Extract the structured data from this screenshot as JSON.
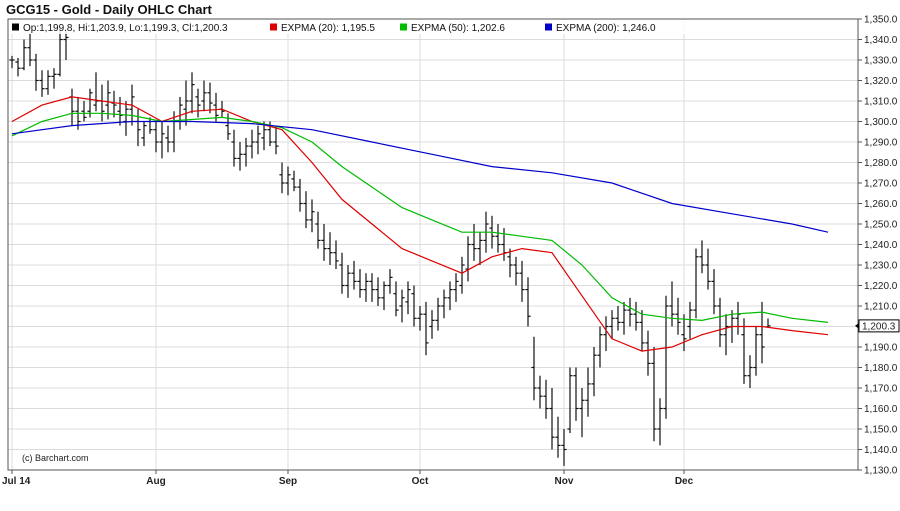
{
  "chart_data": {
    "type": "line",
    "title": "GCG15 - Gold - Daily OHLC Chart",
    "credit": "(c) Barchart.com",
    "y_axis": {
      "side": "right",
      "ylim": [
        1130,
        1350
      ],
      "ticks": [
        "1,130.0",
        "1,140.0",
        "1,150.0",
        "1,160.0",
        "1,170.0",
        "1,180.0",
        "1,190.0",
        "1,200.0",
        "1,210.0",
        "1,220.0",
        "1,230.0",
        "1,240.0",
        "1,250.0",
        "1,260.0",
        "1,270.0",
        "1,280.0",
        "1,290.0",
        "1,300.0",
        "1,310.0",
        "1,320.0",
        "1,330.0",
        "1,340.0",
        "1,350.0"
      ]
    },
    "x_axis": {
      "months": [
        {
          "label": "Jul 14",
          "index": 0
        },
        {
          "label": "Aug",
          "index": 24
        },
        {
          "label": "Sep",
          "index": 46
        },
        {
          "label": "Oct",
          "index": 68
        },
        {
          "label": "Nov",
          "index": 92
        },
        {
          "label": "Dec",
          "index": 112
        }
      ]
    },
    "grid": true,
    "last_price": {
      "value": 1200.3,
      "label": "1,200.3"
    },
    "legend": [
      {
        "swatch": "#000000",
        "text": "Op:1,199.8, Hi:1,203.9, Lo:1,199.3, Cl:1,200.3"
      },
      {
        "swatch": "#dd0000",
        "text": "EXPMA (20): 1,195.5"
      },
      {
        "swatch": "#00bb00",
        "text": "EXPMA (50): 1,202.6"
      },
      {
        "swatch": "#0000cc",
        "text": "EXPMA (200): 1,246.0"
      }
    ],
    "ohlc": [
      [
        1330,
        1332,
        1326,
        1330
      ],
      [
        1329,
        1331,
        1322,
        1326
      ],
      [
        1326,
        1340,
        1325,
        1336
      ],
      [
        1336,
        1343,
        1327,
        1330
      ],
      [
        1330,
        1333,
        1315,
        1320
      ],
      [
        1320,
        1325,
        1312,
        1316
      ],
      [
        1316,
        1325,
        1313,
        1322
      ],
      [
        1322,
        1326,
        1316,
        1323
      ],
      [
        1323,
        1346,
        1322,
        1340
      ],
      [
        1340,
        1345,
        1330,
        1341
      ],
      [
        1312,
        1316,
        1298,
        1305
      ],
      [
        1305,
        1312,
        1296,
        1300
      ],
      [
        1305,
        1310,
        1300,
        1302
      ],
      [
        1305,
        1316,
        1302,
        1314
      ],
      [
        1308,
        1324,
        1305,
        1310
      ],
      [
        1310,
        1318,
        1300,
        1305
      ],
      [
        1308,
        1320,
        1301,
        1314
      ],
      [
        1309,
        1315,
        1302,
        1308
      ],
      [
        1305,
        1312,
        1298,
        1303
      ],
      [
        1300,
        1310,
        1293,
        1306
      ],
      [
        1306,
        1318,
        1298,
        1312
      ],
      [
        1300,
        1306,
        1288,
        1296
      ],
      [
        1292,
        1300,
        1288,
        1298
      ],
      [
        1300,
        1302,
        1294,
        1296
      ],
      [
        1296,
        1300,
        1285,
        1290
      ],
      [
        1290,
        1300,
        1282,
        1294
      ],
      [
        1292,
        1298,
        1285,
        1290
      ],
      [
        1290,
        1305,
        1285,
        1300
      ],
      [
        1300,
        1312,
        1296,
        1308
      ],
      [
        1306,
        1320,
        1298,
        1310
      ],
      [
        1310,
        1324,
        1304,
        1318
      ],
      [
        1312,
        1316,
        1302,
        1308
      ],
      [
        1310,
        1320,
        1305,
        1314
      ],
      [
        1314,
        1319,
        1304,
        1309
      ],
      [
        1308,
        1314,
        1300,
        1303
      ],
      [
        1306,
        1310,
        1302,
        1305
      ],
      [
        1298,
        1304,
        1291,
        1294
      ],
      [
        1290,
        1296,
        1278,
        1282
      ],
      [
        1282,
        1290,
        1276,
        1284
      ],
      [
        1284,
        1292,
        1278,
        1288
      ],
      [
        1288,
        1296,
        1282,
        1290
      ],
      [
        1290,
        1298,
        1284,
        1294
      ],
      [
        1292,
        1300,
        1286,
        1296
      ],
      [
        1296,
        1300,
        1288,
        1290
      ],
      [
        1290,
        1298,
        1284,
        1288
      ],
      [
        1274,
        1280,
        1265,
        1270
      ],
      [
        1270,
        1278,
        1264,
        1274
      ],
      [
        1272,
        1276,
        1266,
        1268
      ],
      [
        1268,
        1272,
        1256,
        1260
      ],
      [
        1260,
        1266,
        1248,
        1252
      ],
      [
        1252,
        1262,
        1246,
        1256
      ],
      [
        1250,
        1256,
        1238,
        1242
      ],
      [
        1242,
        1250,
        1232,
        1238
      ],
      [
        1238,
        1246,
        1230,
        1236
      ],
      [
        1236,
        1242,
        1228,
        1232
      ],
      [
        1230,
        1236,
        1216,
        1220
      ],
      [
        1220,
        1230,
        1214,
        1226
      ],
      [
        1226,
        1232,
        1218,
        1222
      ],
      [
        1222,
        1228,
        1214,
        1218
      ],
      [
        1218,
        1226,
        1212,
        1222
      ],
      [
        1222,
        1226,
        1212,
        1218
      ],
      [
        1218,
        1224,
        1210,
        1214
      ],
      [
        1214,
        1222,
        1208,
        1220
      ],
      [
        1220,
        1228,
        1216,
        1224
      ],
      [
        1216,
        1222,
        1205,
        1208
      ],
      [
        1210,
        1218,
        1202,
        1214
      ],
      [
        1212,
        1222,
        1206,
        1218
      ],
      [
        1216,
        1220,
        1200,
        1204
      ],
      [
        1204,
        1210,
        1198,
        1206
      ],
      [
        1206,
        1212,
        1186,
        1192
      ],
      [
        1200,
        1208,
        1194,
        1203
      ],
      [
        1203,
        1214,
        1198,
        1210
      ],
      [
        1210,
        1218,
        1204,
        1214
      ],
      [
        1214,
        1222,
        1208,
        1218
      ],
      [
        1218,
        1226,
        1212,
        1222
      ],
      [
        1220,
        1234,
        1216,
        1230
      ],
      [
        1228,
        1244,
        1222,
        1240
      ],
      [
        1240,
        1250,
        1232,
        1238
      ],
      [
        1238,
        1246,
        1230,
        1242
      ],
      [
        1242,
        1256,
        1236,
        1250
      ],
      [
        1248,
        1254,
        1238,
        1244
      ],
      [
        1244,
        1250,
        1236,
        1240
      ],
      [
        1240,
        1248,
        1232,
        1236
      ],
      [
        1234,
        1238,
        1224,
        1230
      ],
      [
        1230,
        1234,
        1220,
        1226
      ],
      [
        1226,
        1232,
        1212,
        1218
      ],
      [
        1218,
        1224,
        1200,
        1205
      ],
      [
        1180,
        1195,
        1164,
        1170
      ],
      [
        1170,
        1176,
        1160,
        1166
      ],
      [
        1166,
        1174,
        1155,
        1160
      ],
      [
        1160,
        1170,
        1140,
        1146
      ],
      [
        1146,
        1156,
        1136,
        1142
      ],
      [
        1142,
        1150,
        1132,
        1140
      ],
      [
        1150,
        1180,
        1148,
        1176
      ],
      [
        1176,
        1180,
        1154,
        1160
      ],
      [
        1160,
        1170,
        1146,
        1164
      ],
      [
        1164,
        1180,
        1156,
        1172
      ],
      [
        1172,
        1190,
        1166,
        1186
      ],
      [
        1186,
        1200,
        1180,
        1196
      ],
      [
        1196,
        1205,
        1188,
        1200
      ],
      [
        1200,
        1208,
        1194,
        1204
      ],
      [
        1204,
        1210,
        1198,
        1202
      ],
      [
        1202,
        1212,
        1196,
        1208
      ],
      [
        1208,
        1214,
        1200,
        1206
      ],
      [
        1206,
        1212,
        1198,
        1202
      ],
      [
        1202,
        1208,
        1188,
        1192
      ],
      [
        1192,
        1198,
        1176,
        1182
      ],
      [
        1182,
        1190,
        1144,
        1150
      ],
      [
        1150,
        1165,
        1142,
        1160
      ],
      [
        1160,
        1215,
        1155,
        1210
      ],
      [
        1210,
        1222,
        1200,
        1206
      ],
      [
        1206,
        1214,
        1196,
        1202
      ],
      [
        1196,
        1206,
        1188,
        1194
      ],
      [
        1200,
        1212,
        1194,
        1208
      ],
      [
        1208,
        1238,
        1204,
        1234
      ],
      [
        1234,
        1242,
        1226,
        1230
      ],
      [
        1230,
        1238,
        1218,
        1222
      ],
      [
        1222,
        1228,
        1206,
        1210
      ],
      [
        1210,
        1214,
        1190,
        1196
      ],
      [
        1196,
        1206,
        1186,
        1200
      ],
      [
        1200,
        1208,
        1192,
        1204
      ],
      [
        1204,
        1212,
        1196,
        1206
      ],
      [
        1196,
        1204,
        1172,
        1176
      ],
      [
        1176,
        1186,
        1170,
        1180
      ],
      [
        1180,
        1200,
        1176,
        1196
      ],
      [
        1196,
        1212,
        1182,
        1190
      ],
      [
        1199.8,
        1203.9,
        1199.3,
        1200.3
      ]
    ],
    "series": [
      {
        "name": "EXPMA (20)",
        "color": "#dd0000",
        "x": [
          0,
          5,
          10,
          15,
          20,
          25,
          30,
          35,
          40,
          45,
          50,
          55,
          60,
          65,
          70,
          75,
          80,
          85,
          90,
          95,
          100,
          105,
          110,
          115,
          120,
          125,
          130,
          136
        ],
        "values": [
          1300,
          1308,
          1312,
          1310,
          1308,
          1300,
          1305,
          1306,
          1300,
          1296,
          1280,
          1262,
          1250,
          1238,
          1232,
          1226,
          1234,
          1238,
          1236,
          1215,
          1194,
          1188,
          1190,
          1196,
          1200,
          1200,
          1198,
          1196
        ]
      },
      {
        "name": "EXPMA (50)",
        "color": "#00bb00",
        "x": [
          0,
          5,
          10,
          15,
          20,
          25,
          30,
          35,
          40,
          45,
          50,
          55,
          60,
          65,
          70,
          75,
          80,
          85,
          90,
          95,
          100,
          105,
          110,
          115,
          120,
          125,
          130,
          136
        ],
        "values": [
          1293,
          1300,
          1304,
          1304,
          1303,
          1300,
          1301,
          1302,
          1300,
          1297,
          1290,
          1278,
          1268,
          1258,
          1252,
          1246,
          1246,
          1244,
          1242,
          1230,
          1214,
          1206,
          1204,
          1203,
          1206,
          1207,
          1204,
          1202
        ]
      },
      {
        "name": "EXPMA (200)",
        "color": "#0000cc",
        "x": [
          0,
          10,
          20,
          30,
          40,
          50,
          60,
          70,
          80,
          90,
          100,
          110,
          120,
          130,
          136
        ],
        "values": [
          1294,
          1298,
          1300,
          1300,
          1299,
          1296,
          1290,
          1284,
          1278,
          1275,
          1270,
          1260,
          1255,
          1250,
          1246
        ]
      }
    ]
  }
}
